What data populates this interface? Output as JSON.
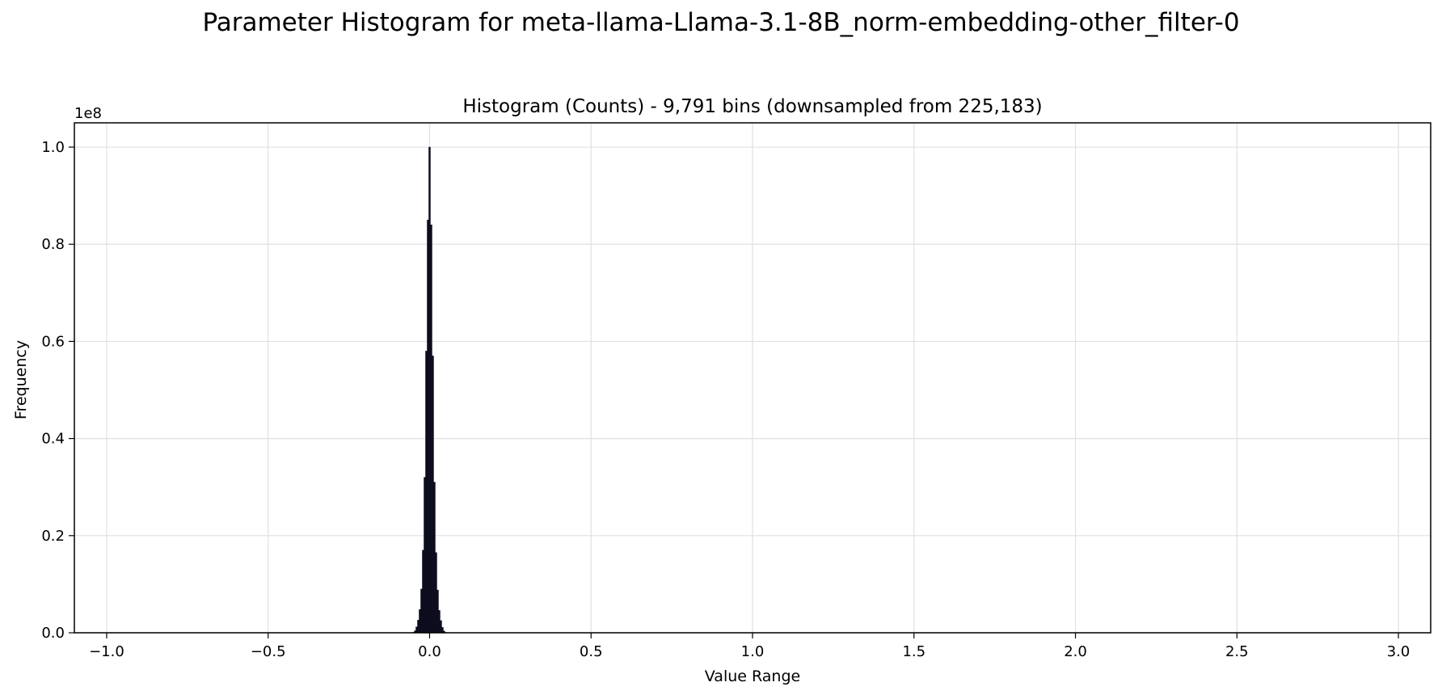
{
  "figure": {
    "suptitle": "Parameter Histogram for meta-llama-Llama-3.1-8B_norm-embedding-other_filter-0"
  },
  "chart_data": {
    "type": "bar",
    "title": "Histogram (Counts) - 9,791 bins (downsampled from 225,183)",
    "xlabel": "Value Range",
    "ylabel": "Frequency",
    "y_offset_label": "1e8",
    "xlim": [
      -1.1,
      3.1
    ],
    "ylim": [
      0,
      105000000
    ],
    "x_ticks": [
      -1.0,
      -0.5,
      0.0,
      0.5,
      1.0,
      1.5,
      2.0,
      2.5,
      3.0
    ],
    "x_tick_labels": [
      "−1.0",
      "−0.5",
      "0.0",
      "0.5",
      "1.0",
      "1.5",
      "2.0",
      "2.5",
      "3.0"
    ],
    "y_ticks": [
      0,
      20000000,
      40000000,
      60000000,
      80000000,
      100000000
    ],
    "y_tick_labels": [
      "0.0",
      "0.2",
      "0.4",
      "0.6",
      "0.8",
      "1.0"
    ],
    "grid": true,
    "bar_color": "#0d0d1f",
    "x": [
      -0.05,
      -0.045,
      -0.04,
      -0.035,
      -0.03,
      -0.025,
      -0.02,
      -0.015,
      -0.01,
      -0.005,
      0.0,
      0.005,
      0.01,
      0.015,
      0.02,
      0.025,
      0.03,
      0.035,
      0.04,
      0.045,
      0.05
    ],
    "values": [
      100000,
      400000,
      1200000,
      2600000,
      4800000,
      9000000,
      17000000,
      32000000,
      58000000,
      85000000,
      100000000,
      84000000,
      57000000,
      31000000,
      16500000,
      8800000,
      4600000,
      2500000,
      1100000,
      350000,
      90000
    ]
  }
}
